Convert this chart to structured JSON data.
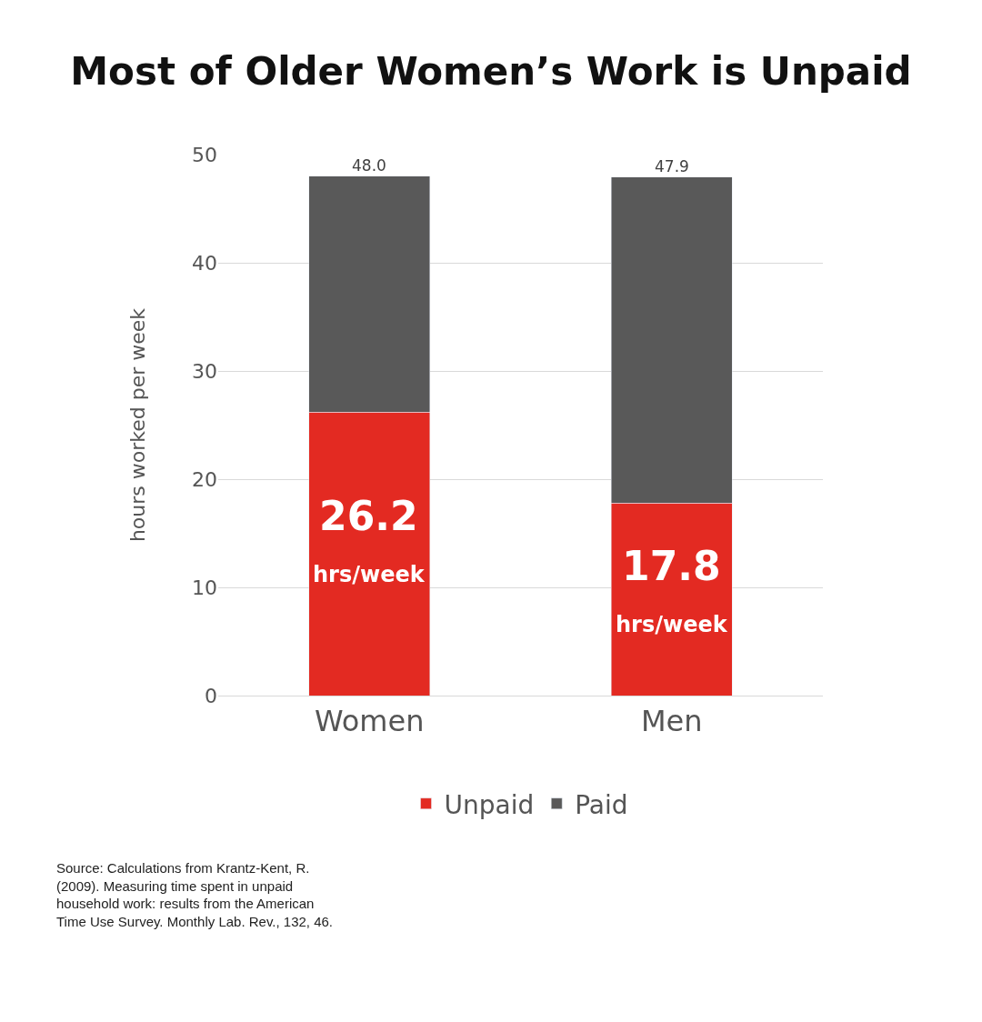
{
  "chart_data": {
    "type": "bar",
    "title": "Most of Older Women’s Work is Unpaid",
    "ylabel": "hours worked per week",
    "categories": [
      "Women",
      "Men"
    ],
    "stacked": true,
    "series": [
      {
        "name": "Unpaid",
        "color": "#e32a22",
        "values": [
          26.2,
          17.8
        ],
        "value_labels": [
          "26.2 hrs/week",
          "17.8 hrs/week"
        ]
      },
      {
        "name": "Paid",
        "color": "#595959",
        "values": [
          21.8,
          30.1
        ]
      }
    ],
    "totals": [
      "48.0",
      "47.9"
    ],
    "ylim": [
      0,
      50
    ],
    "yticks": [
      0,
      10,
      20,
      30,
      40,
      50
    ],
    "grid": "y",
    "legend": "bottom",
    "annotations": [
      "Source: Calculations from Krantz-Kent, R. (2009). Measuring time spent in unpaid household work: results from the American Time Use Survey. Monthly Lab. Rev., 132, 46."
    ]
  }
}
